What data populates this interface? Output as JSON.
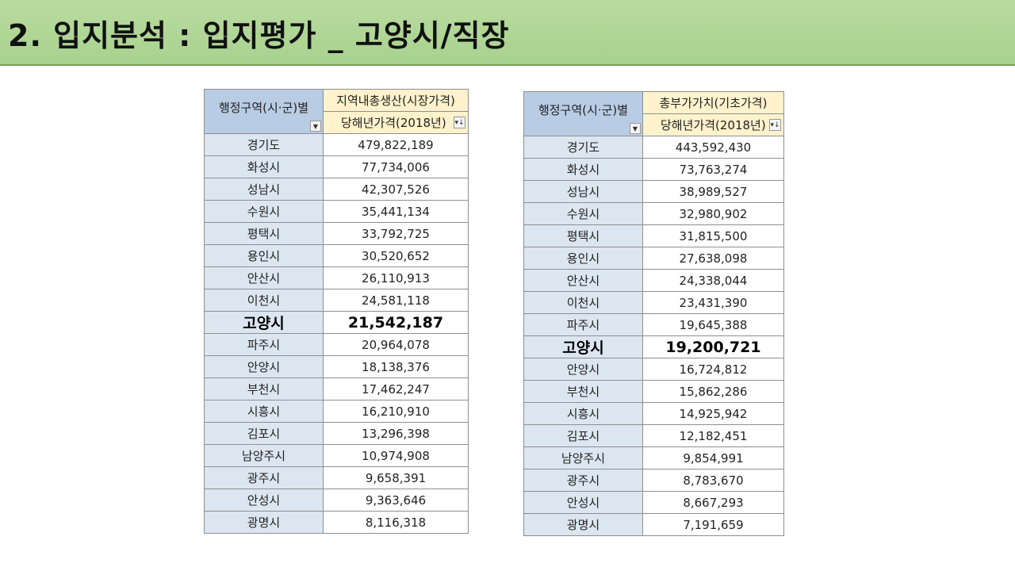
{
  "title": "2. 입지분석 : 입지평가 _ 고양시/직장",
  "left_table": {
    "header_name": "행정구역(시·군)별",
    "header_top": "지역내총생산(시장가격)",
    "header_sub": "당해년가격(2018년)",
    "filter_icon": "dropdown-arrow",
    "sort_icon": "sort-descending",
    "rows": [
      {
        "name": "경기도",
        "value": "479,822,189"
      },
      {
        "name": "화성시",
        "value": "77,734,006"
      },
      {
        "name": "성남시",
        "value": "42,307,526"
      },
      {
        "name": "수원시",
        "value": "35,441,134"
      },
      {
        "name": "평택시",
        "value": "33,792,725"
      },
      {
        "name": "용인시",
        "value": "30,520,652"
      },
      {
        "name": "안산시",
        "value": "26,110,913"
      },
      {
        "name": "이천시",
        "value": "24,581,118"
      },
      {
        "name": "고양시",
        "value": "21,542,187"
      },
      {
        "name": "파주시",
        "value": "20,964,078"
      },
      {
        "name": "안양시",
        "value": "18,138,376"
      },
      {
        "name": "부천시",
        "value": "17,462,247"
      },
      {
        "name": "시흥시",
        "value": "16,210,910"
      },
      {
        "name": "김포시",
        "value": "13,296,398"
      },
      {
        "name": "남양주시",
        "value": "10,974,908"
      },
      {
        "name": "광주시",
        "value": "9,658,391"
      },
      {
        "name": "안성시",
        "value": "9,363,646"
      },
      {
        "name": "광명시",
        "value": "8,116,318"
      }
    ]
  },
  "right_table": {
    "header_name": "행정구역(시·군)별",
    "header_top": "총부가가치(기초가격)",
    "header_sub": "당해년가격(2018년)",
    "filter_icon": "dropdown-arrow",
    "sort_icon": "sort-descending",
    "rows": [
      {
        "name": "경기도",
        "value": "443,592,430"
      },
      {
        "name": "화성시",
        "value": "73,763,274"
      },
      {
        "name": "성남시",
        "value": "38,989,527"
      },
      {
        "name": "수원시",
        "value": "32,980,902"
      },
      {
        "name": "평택시",
        "value": "31,815,500"
      },
      {
        "name": "용인시",
        "value": "27,638,098"
      },
      {
        "name": "안산시",
        "value": "24,338,044"
      },
      {
        "name": "이천시",
        "value": "23,431,390"
      },
      {
        "name": "파주시",
        "value": "19,645,388"
      },
      {
        "name": "고양시",
        "value": "19,200,721"
      },
      {
        "name": "안양시",
        "value": "16,724,812"
      },
      {
        "name": "부천시",
        "value": "15,862,286"
      },
      {
        "name": "시흥시",
        "value": "14,925,942"
      },
      {
        "name": "김포시",
        "value": "12,182,451"
      },
      {
        "name": "남양주시",
        "value": "9,854,991"
      },
      {
        "name": "광주시",
        "value": "8,783,670"
      },
      {
        "name": "안성시",
        "value": "8,667,293"
      },
      {
        "name": "광명시",
        "value": "7,191,659"
      }
    ]
  },
  "highlight_name": "고양시"
}
